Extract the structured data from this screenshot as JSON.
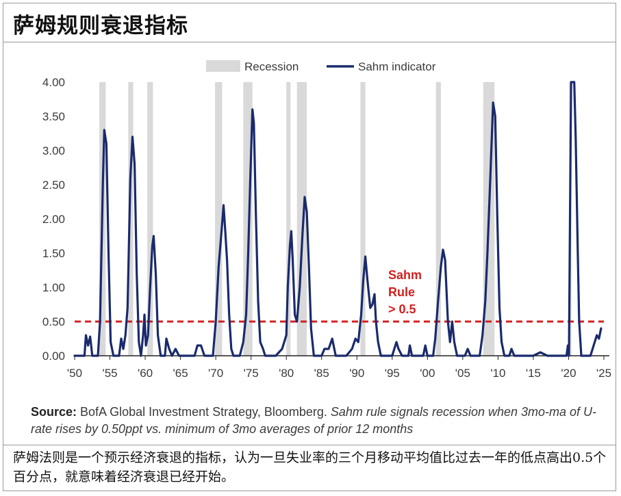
{
  "page": {
    "title": "萨姆规则衰退指标",
    "caption": "萨姆法则是一个预示经济衰退的指标，认为一旦失业率的三个月移动平均值比过去一年的低点高出0.5个百分点，就意味着经济衰退已经开始。"
  },
  "source": {
    "label": "Source:",
    "text": " BofA Global Investment Strategy, Bloomberg. ",
    "note": "Sahm rule signals recession when 3mo-ma of U-rate rises by 0.50ppt vs. minimum of 3mo averages of prior 12 months"
  },
  "colors": {
    "line": "#1a2a6c",
    "recession": "#d9d9d9",
    "threshold": "#d42020",
    "annotation": "#d42020",
    "axis_text": "#3a3a3a"
  },
  "chart_data": {
    "type": "line",
    "xlim": [
      1950,
      2025
    ],
    "ylim": [
      0,
      4
    ],
    "yticks": [
      "0.00",
      "0.50",
      "1.00",
      "1.50",
      "2.00",
      "2.50",
      "3.00",
      "3.50",
      "4.00"
    ],
    "xticks": [
      "'50",
      "'55",
      "'60",
      "'65",
      "'70",
      "'75",
      "'80",
      "'85",
      "'90",
      "'95",
      "'00",
      "'05",
      "'10",
      "'15",
      "'20",
      "'25"
    ],
    "legend": {
      "position": "top",
      "recession_label": "Recession",
      "series_label": "Sahm indicator"
    },
    "threshold": {
      "value": 0.5,
      "label_lines": [
        "Sahm",
        "Rule",
        "> 0.5"
      ]
    },
    "recessions": [
      [
        1953.5,
        1954.4
      ],
      [
        1957.6,
        1958.3
      ],
      [
        1960.3,
        1961.1
      ],
      [
        1969.9,
        1970.9
      ],
      [
        1973.9,
        1975.2
      ],
      [
        1980.0,
        1980.6
      ],
      [
        1981.5,
        1982.9
      ],
      [
        1990.5,
        1991.2
      ],
      [
        2001.2,
        2001.9
      ],
      [
        2007.9,
        2009.5
      ],
      [
        2020.1,
        2020.4
      ]
    ],
    "series": [
      {
        "name": "Sahm indicator",
        "points": [
          [
            1950,
            0.0
          ],
          [
            1951.4,
            0.0
          ],
          [
            1951.6,
            0.3
          ],
          [
            1951.9,
            0.15
          ],
          [
            1952.2,
            0.28
          ],
          [
            1952.5,
            0.0
          ],
          [
            1953.3,
            0.0
          ],
          [
            1953.6,
            0.5
          ],
          [
            1954.0,
            2.5
          ],
          [
            1954.2,
            3.3
          ],
          [
            1954.5,
            3.1
          ],
          [
            1954.8,
            1.5
          ],
          [
            1955.1,
            0.2
          ],
          [
            1955.5,
            0.0
          ],
          [
            1956.3,
            0.0
          ],
          [
            1956.6,
            0.25
          ],
          [
            1956.9,
            0.1
          ],
          [
            1957.2,
            0.3
          ],
          [
            1957.5,
            0.7
          ],
          [
            1957.9,
            2.6
          ],
          [
            1958.2,
            3.2
          ],
          [
            1958.5,
            2.8
          ],
          [
            1958.8,
            1.2
          ],
          [
            1959.1,
            0.2
          ],
          [
            1959.4,
            0.0
          ],
          [
            1959.7,
            0.3
          ],
          [
            1959.9,
            0.6
          ],
          [
            1960.1,
            0.15
          ],
          [
            1960.4,
            0.3
          ],
          [
            1960.7,
            1.0
          ],
          [
            1961.0,
            1.6
          ],
          [
            1961.2,
            1.75
          ],
          [
            1961.5,
            1.2
          ],
          [
            1961.8,
            0.3
          ],
          [
            1962.2,
            0.0
          ],
          [
            1962.8,
            0.0
          ],
          [
            1963.0,
            0.25
          ],
          [
            1963.4,
            0.1
          ],
          [
            1963.8,
            0.0
          ],
          [
            1964.3,
            0.1
          ],
          [
            1964.8,
            0.0
          ],
          [
            1967.0,
            0.0
          ],
          [
            1967.4,
            0.15
          ],
          [
            1967.9,
            0.15
          ],
          [
            1968.4,
            0.0
          ],
          [
            1969.6,
            0.0
          ],
          [
            1970.0,
            0.5
          ],
          [
            1970.4,
            1.3
          ],
          [
            1970.8,
            1.8
          ],
          [
            1971.1,
            2.2
          ],
          [
            1971.3,
            1.9
          ],
          [
            1971.6,
            1.4
          ],
          [
            1971.9,
            0.6
          ],
          [
            1972.2,
            0.1
          ],
          [
            1972.5,
            0.0
          ],
          [
            1973.4,
            0.0
          ],
          [
            1973.9,
            0.2
          ],
          [
            1974.3,
            0.6
          ],
          [
            1974.6,
            1.5
          ],
          [
            1974.9,
            2.6
          ],
          [
            1975.2,
            3.6
          ],
          [
            1975.4,
            3.4
          ],
          [
            1975.7,
            2.0
          ],
          [
            1976.0,
            0.8
          ],
          [
            1976.3,
            0.2
          ],
          [
            1976.7,
            0.1
          ],
          [
            1977.0,
            0.0
          ],
          [
            1978.5,
            0.0
          ],
          [
            1979.4,
            0.1
          ],
          [
            1979.7,
            0.2
          ],
          [
            1980.0,
            0.3
          ],
          [
            1980.2,
            1.0
          ],
          [
            1980.5,
            1.6
          ],
          [
            1980.7,
            1.82
          ],
          [
            1980.9,
            1.4
          ],
          [
            1981.2,
            0.6
          ],
          [
            1981.5,
            0.5
          ],
          [
            1981.9,
            1.0
          ],
          [
            1982.3,
            1.8
          ],
          [
            1982.6,
            2.32
          ],
          [
            1982.9,
            2.1
          ],
          [
            1983.2,
            1.3
          ],
          [
            1983.5,
            0.4
          ],
          [
            1983.9,
            0.0
          ],
          [
            1985.0,
            0.0
          ],
          [
            1985.4,
            0.1
          ],
          [
            1986.0,
            0.1
          ],
          [
            1986.5,
            0.25
          ],
          [
            1987.0,
            0.0
          ],
          [
            1988.5,
            0.0
          ],
          [
            1989.3,
            0.1
          ],
          [
            1989.8,
            0.25
          ],
          [
            1990.2,
            0.2
          ],
          [
            1990.6,
            0.6
          ],
          [
            1990.9,
            1.1
          ],
          [
            1991.2,
            1.45
          ],
          [
            1991.5,
            1.1
          ],
          [
            1991.9,
            0.7
          ],
          [
            1992.2,
            0.75
          ],
          [
            1992.5,
            0.9
          ],
          [
            1992.7,
            0.5
          ],
          [
            1993.0,
            0.2
          ],
          [
            1993.4,
            0.0
          ],
          [
            1995.0,
            0.0
          ],
          [
            1995.3,
            0.1
          ],
          [
            1995.6,
            0.2
          ],
          [
            1995.9,
            0.1
          ],
          [
            1996.4,
            0.0
          ],
          [
            1997.3,
            0.0
          ],
          [
            1997.5,
            0.15
          ],
          [
            1997.8,
            0.0
          ],
          [
            1999.4,
            0.0
          ],
          [
            1999.7,
            0.15
          ],
          [
            2000.0,
            0.0
          ],
          [
            2000.8,
            0.0
          ],
          [
            2001.1,
            0.25
          ],
          [
            2001.5,
            0.8
          ],
          [
            2001.9,
            1.3
          ],
          [
            2002.2,
            1.55
          ],
          [
            2002.5,
            1.4
          ],
          [
            2002.9,
            0.5
          ],
          [
            2003.2,
            0.2
          ],
          [
            2003.5,
            0.5
          ],
          [
            2003.8,
            0.2
          ],
          [
            2004.2,
            0.0
          ],
          [
            2005.3,
            0.0
          ],
          [
            2005.7,
            0.1
          ],
          [
            2006.1,
            0.0
          ],
          [
            2007.4,
            0.0
          ],
          [
            2007.8,
            0.3
          ],
          [
            2008.2,
            0.8
          ],
          [
            2008.5,
            1.5
          ],
          [
            2008.9,
            2.6
          ],
          [
            2009.3,
            3.7
          ],
          [
            2009.6,
            3.5
          ],
          [
            2009.9,
            2.0
          ],
          [
            2010.2,
            0.7
          ],
          [
            2010.5,
            0.2
          ],
          [
            2010.9,
            0.0
          ],
          [
            2011.6,
            0.0
          ],
          [
            2011.9,
            0.1
          ],
          [
            2012.3,
            0.0
          ],
          [
            2015.0,
            0.0
          ],
          [
            2016.0,
            0.05
          ],
          [
            2017.0,
            0.0
          ],
          [
            2019.7,
            0.0
          ],
          [
            2019.9,
            0.15
          ],
          [
            2020.05,
            0.0
          ],
          [
            2020.2,
            2.0
          ],
          [
            2020.35,
            4.0
          ],
          [
            2020.8,
            4.0
          ],
          [
            2021.0,
            3.2
          ],
          [
            2021.3,
            1.5
          ],
          [
            2021.5,
            0.5
          ],
          [
            2021.8,
            0.0
          ],
          [
            2023.1,
            0.0
          ],
          [
            2023.4,
            0.1
          ],
          [
            2023.7,
            0.2
          ],
          [
            2024.0,
            0.3
          ],
          [
            2024.3,
            0.25
          ],
          [
            2024.6,
            0.4
          ]
        ]
      }
    ]
  }
}
